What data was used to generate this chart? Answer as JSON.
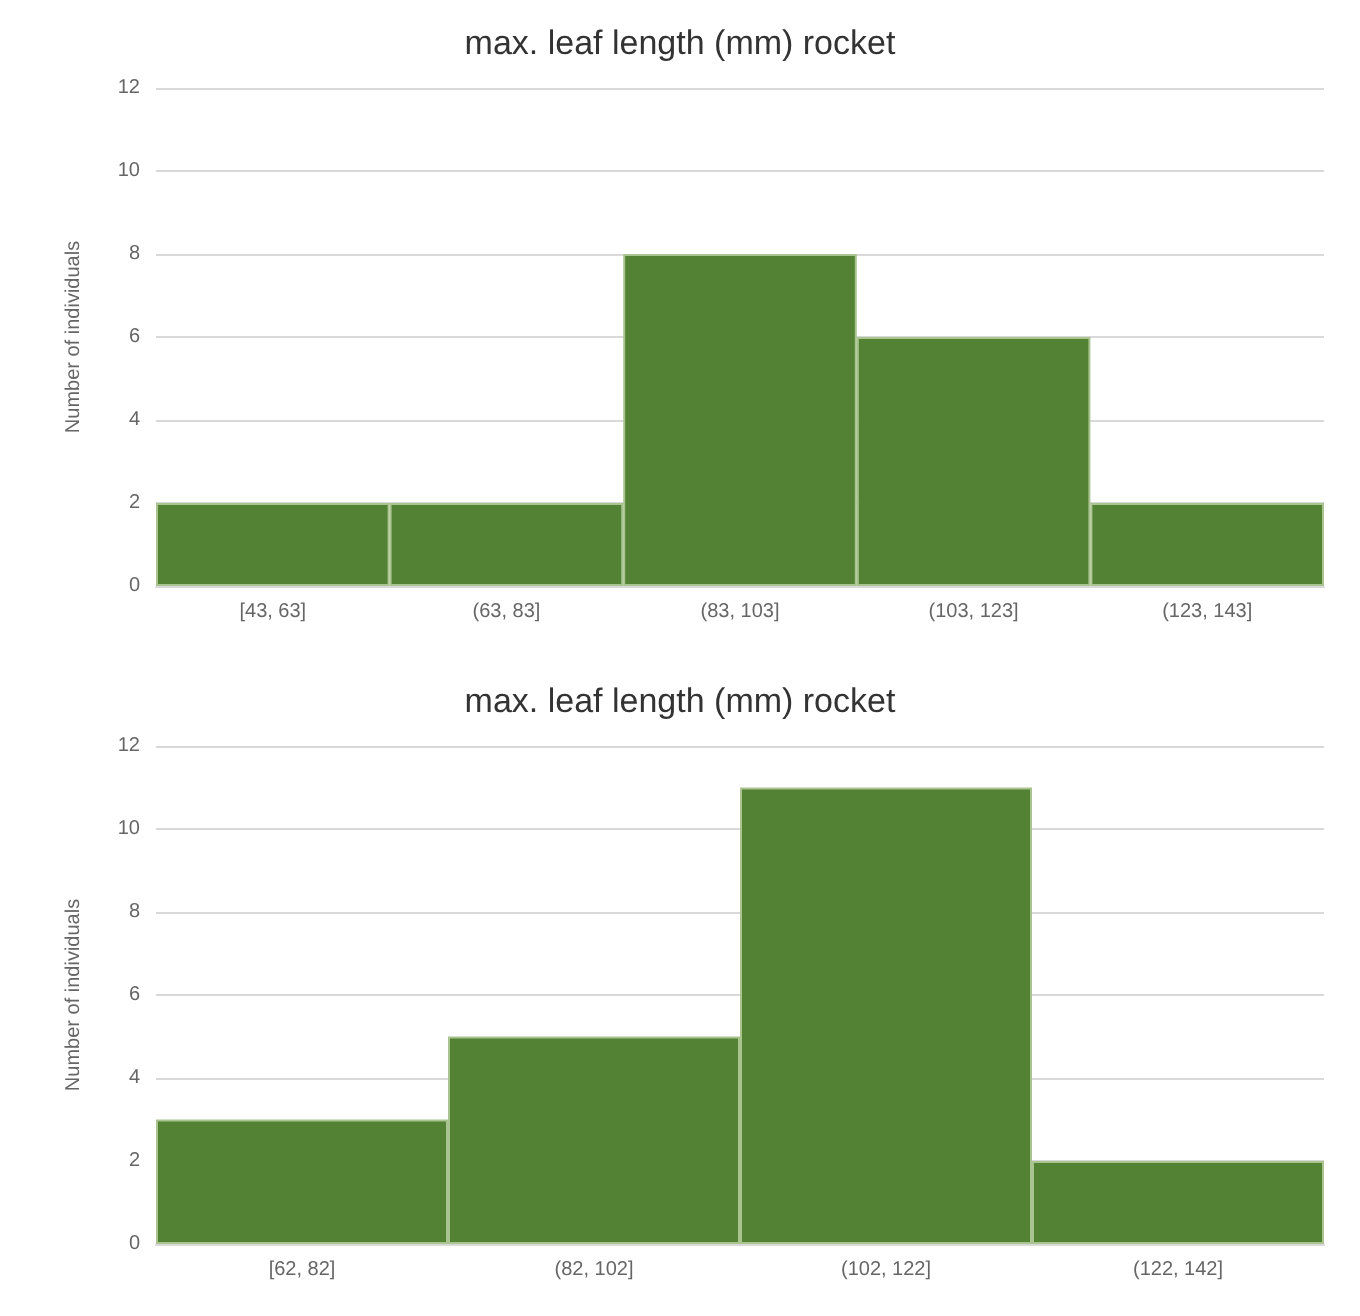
{
  "chart_data": [
    {
      "type": "bar",
      "title": "max. leaf length (mm) rocket",
      "ylabel": "Number of individuals",
      "categories": [
        "[43, 63]",
        "(63, 83]",
        "(83, 103]",
        "(103, 123]",
        "(123, 143]"
      ],
      "values": [
        2,
        2,
        8,
        6,
        2
      ],
      "color": "#548235",
      "ylim": [
        0,
        12
      ],
      "yticks": [
        0,
        2,
        4,
        6,
        8,
        10,
        12
      ],
      "grid": "y"
    },
    {
      "type": "bar",
      "title": "max. leaf length (mm) rocket",
      "ylabel": "Number of individuals",
      "categories": [
        "[62, 82]",
        "(82, 102]",
        "(102, 122]",
        "(122, 142]"
      ],
      "values": [
        3,
        5,
        11,
        2
      ],
      "color": "#548235",
      "ylim": [
        0,
        12
      ],
      "yticks": [
        0,
        2,
        4,
        6,
        8,
        10,
        12
      ],
      "grid": "y"
    }
  ]
}
